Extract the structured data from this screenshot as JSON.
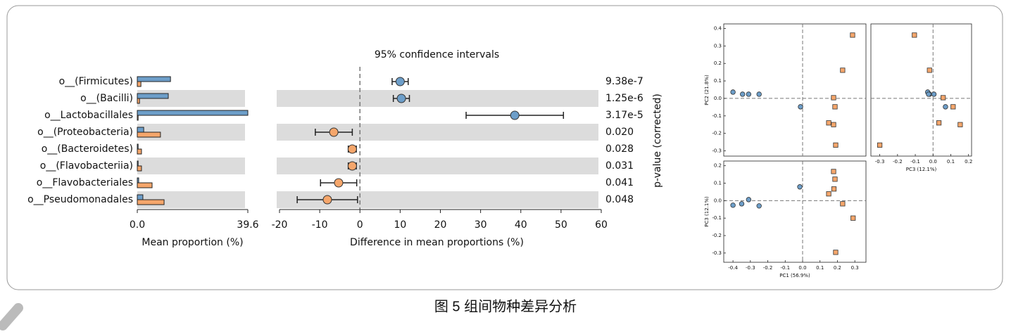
{
  "chart_data": [
    {
      "type": "bar",
      "orientation": "horizontal",
      "row_shading": true,
      "categories": [
        "o__(Firmicutes)",
        "o__(Bacilli)",
        "o__Lactobacillales",
        "o__(Proteobacteria)",
        "o__(Bacteroidetes)",
        "o__(Flavobacteriia)",
        "o__Flavobacteriales",
        "o__Pseudomonadales"
      ],
      "series": [
        {
          "color": "#6d9ec9",
          "values": [
            11.9,
            11.1,
            39.6,
            2.3,
            0.3,
            0.3,
            0.5,
            2.0
          ]
        },
        {
          "color": "#f5a66b",
          "values": [
            1.3,
            0.8,
            0.3,
            8.3,
            1.5,
            1.5,
            5.3,
            9.6
          ]
        }
      ],
      "xlim": [
        0,
        39.6
      ],
      "xticks": [
        {
          "value": 0,
          "label": "0.0"
        },
        39.6
      ],
      "xlabel": "Mean proportion (%)"
    },
    {
      "type": "errorbar",
      "title": "95% confidence intervals",
      "row_shading": true,
      "zero_line": true,
      "values": [
        10.0,
        10.3,
        38.5,
        -6.5,
        -1.9,
        -1.9,
        -5.3,
        -8.1
      ],
      "errors": [
        2.0,
        2.0,
        12.1,
        4.6,
        1.0,
        1.0,
        4.5,
        7.5
      ],
      "colors": [
        "#6d9ec9",
        "#6d9ec9",
        "#6d9ec9",
        "#f5a66b",
        "#f5a66b",
        "#f5a66b",
        "#f5a66b",
        "#f5a66b"
      ],
      "p_values": [
        "9.38e-7",
        "1.25e-6",
        "3.17e-5",
        "0.020",
        "0.028",
        "0.031",
        "0.041",
        "0.048"
      ],
      "xlim": [
        -20,
        60
      ],
      "xticks": [
        -20,
        -10,
        0,
        10,
        20,
        30,
        40,
        50,
        60
      ],
      "xlabel": "Difference in mean proportions (%)",
      "ylabel": "p-value (corrected)"
    },
    {
      "type": "scatter",
      "zero_line": true,
      "ylabel": "PC2 (21.8%)",
      "xlim": [
        -0.453,
        0.364
      ],
      "ylim": [
        -0.33,
        0.426
      ],
      "yticks": [
        0.4,
        0.3,
        0.2,
        0.1,
        {
          "value": 0,
          "label": "0.0"
        },
        -0.1,
        -0.2,
        -0.3
      ],
      "series": [
        {
          "color": "#6d9ec9",
          "marker": "circle",
          "x": [
            -0.4,
            -0.345,
            -0.31,
            -0.25,
            -0.012
          ],
          "y": [
            0.036,
            0.024,
            0.024,
            0.024,
            -0.048
          ]
        },
        {
          "color": "#f5a66b",
          "marker": "square",
          "x": [
            0.287,
            0.23,
            0.178,
            0.186,
            0.15,
            0.178,
            0.19
          ],
          "y": [
            0.362,
            0.161,
            0.004,
            -0.048,
            -0.14,
            -0.15,
            -0.267
          ]
        }
      ]
    },
    {
      "type": "scatter",
      "zero_line": true,
      "xlabel": "PC3 (12.1%)",
      "xlim": [
        -0.35,
        0.217
      ],
      "ylim": [
        -0.33,
        0.426
      ],
      "xticks": [
        -0.3,
        -0.2,
        -0.1,
        {
          "value": 0,
          "label": "0.0"
        },
        0.1,
        0.2
      ],
      "series": [
        {
          "color": "#6d9ec9",
          "marker": "circle",
          "x": [
            -0.03,
            -0.02,
            0.005,
            -0.025,
            0.07
          ],
          "y": [
            0.036,
            0.024,
            0.024,
            0.024,
            -0.048
          ]
        },
        {
          "color": "#f5a66b",
          "marker": "square",
          "x": [
            -0.105,
            -0.02,
            0.057,
            0.113,
            0.033,
            0.153,
            -0.3
          ],
          "y": [
            0.362,
            0.161,
            0.004,
            -0.048,
            -0.14,
            -0.15,
            -0.267
          ]
        }
      ]
    },
    {
      "type": "scatter",
      "zero_line": true,
      "xlabel": "PC1 (56.9%)",
      "ylabel": "PC3 (12.1%)",
      "xlim": [
        -0.453,
        0.364
      ],
      "ylim": [
        -0.353,
        0.227
      ],
      "xticks": [
        -0.4,
        -0.3,
        -0.2,
        -0.1,
        {
          "value": 0,
          "label": "0.0"
        },
        0.1,
        0.2,
        0.3
      ],
      "yticks": [
        0.2,
        0.1,
        {
          "value": 0,
          "label": "0.0"
        },
        -0.1,
        -0.2,
        -0.3
      ],
      "series": [
        {
          "color": "#6d9ec9",
          "marker": "circle",
          "x": [
            -0.4,
            -0.35,
            -0.31,
            -0.25,
            -0.016
          ],
          "y": [
            -0.026,
            -0.018,
            0.006,
            -0.03,
            0.079
          ]
        },
        {
          "color": "#f5a66b",
          "marker": "square",
          "x": [
            0.178,
            0.186,
            0.18,
            0.15,
            0.23,
            0.29,
            0.19
          ],
          "y": [
            0.167,
            0.123,
            0.067,
            0.039,
            -0.018,
            -0.1,
            -0.296
          ]
        }
      ]
    }
  ],
  "caption": "图 5 组间物种差异分析"
}
